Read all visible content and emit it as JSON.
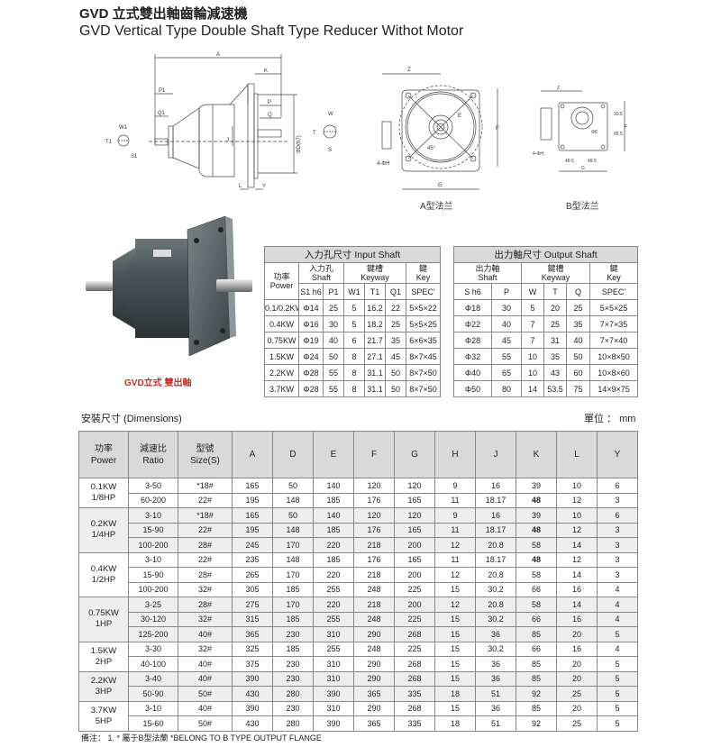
{
  "title": {
    "zh": "GVD 立式雙出軸齒輪減速機",
    "en": "GVD Vertical Type Double Shaft Type Reducer Withot Motor"
  },
  "drawings": {
    "side_labels": [
      "A",
      "K",
      "P1",
      "P",
      "Q1",
      "Q",
      "W1",
      "T1",
      "S1",
      "J",
      "ΦD(h7)",
      "W",
      "T",
      "S",
      "L",
      "Y"
    ],
    "flange_a_labels": [
      "Z",
      "E",
      "F",
      "G",
      "4-ΦH",
      "45°"
    ],
    "flange_b_labels": [
      "Z",
      "F",
      "G",
      "4-ΦH",
      "49.5",
      "49.5",
      "33.5",
      "65.5",
      "Φ8"
    ],
    "flange_a_caption": "A型法兰",
    "flange_b_caption": "B型法兰"
  },
  "photo_caption": "GVD立式  雙出軸",
  "input_shaft": {
    "caption": "入力孔尺寸 Input Shaft",
    "power_zh": "功率",
    "power_en": "Power",
    "shaft_zh": "入力孔",
    "shaft_en": "Shaft",
    "keyway_zh": "鍵槽",
    "keyway_en": "Keyway",
    "key_zh": "鍵",
    "key_en": "Key",
    "cols": [
      "S1  h6",
      "P1",
      "W1",
      "T1",
      "Q1",
      "SPEC'"
    ],
    "rows": [
      [
        "0.1/0.2KW",
        "Φ14",
        "25",
        "5",
        "16.2",
        "22",
        "5×5×22"
      ],
      [
        "0.4KW",
        "Φ16",
        "30",
        "5",
        "18.2",
        "25",
        "5×5×25"
      ],
      [
        "0.75KW",
        "Φ19",
        "40",
        "6",
        "21.7",
        "35",
        "6×6×35"
      ],
      [
        "1.5KW",
        "Φ24",
        "50",
        "8",
        "27.1",
        "45",
        "8×7×45"
      ],
      [
        "2.2KW",
        "Φ28",
        "55",
        "8",
        "31.1",
        "50",
        "8×7×50"
      ],
      [
        "3.7KW",
        "Φ28",
        "55",
        "8",
        "31.1",
        "50",
        "8×7×50"
      ]
    ]
  },
  "output_shaft": {
    "caption": "出力軸尺寸 Output Shaft",
    "shaft_zh": "出力軸",
    "shaft_en": "Shaft",
    "keyway_zh": "鍵槽",
    "keyway_en": "Keyway",
    "key_zh": "鍵",
    "key_en": "Key",
    "cols": [
      "S  h6",
      "P",
      "W",
      "T",
      "Q",
      "SPEC'"
    ],
    "rows": [
      [
        "Φ18",
        "30",
        "5",
        "20",
        "25",
        "5×5×25"
      ],
      [
        "Φ22",
        "40",
        "7",
        "25",
        "35",
        "7×7×35"
      ],
      [
        "Φ28",
        "45",
        "7",
        "31",
        "40",
        "7×7×40"
      ],
      [
        "Φ32",
        "55",
        "10",
        "35",
        "50",
        "10×8×50"
      ],
      [
        "Φ40",
        "65",
        "10",
        "43",
        "60",
        "10×8×60"
      ],
      [
        "Φ50",
        "80",
        "14",
        "53.5",
        "75",
        "14×9×75"
      ]
    ]
  },
  "dimensions": {
    "label": "安裝尺寸 (Dimensions)",
    "unit": "單位 ： mm",
    "headers": [
      [
        "功率",
        "Power"
      ],
      [
        "減速比",
        "Ratio"
      ],
      [
        "型號",
        "Size(S)"
      ],
      [
        "A"
      ],
      [
        "D"
      ],
      [
        "E"
      ],
      [
        "F"
      ],
      [
        "G"
      ],
      [
        "H"
      ],
      [
        "J"
      ],
      [
        "K"
      ],
      [
        "L"
      ],
      [
        "Y"
      ]
    ],
    "groups": [
      {
        "power": [
          "0.1KW",
          "1/8HP"
        ],
        "rows": [
          [
            "3-50",
            "*18#",
            "165",
            "50",
            "140",
            "120",
            "120",
            "9",
            "16",
            "39",
            "10",
            "6"
          ],
          [
            "60-200",
            "22#",
            "195",
            "148",
            "185",
            "176",
            "165",
            "11",
            "18.17",
            "48",
            "12",
            "3"
          ]
        ]
      },
      {
        "power": [
          "0.2KW",
          "1/4HP"
        ],
        "rows": [
          [
            "3-10",
            "*18#",
            "165",
            "50",
            "140",
            "120",
            "120",
            "9",
            "16",
            "39",
            "10",
            "6"
          ],
          [
            "15-90",
            "22#",
            "195",
            "148",
            "185",
            "176",
            "165",
            "11",
            "18.17",
            "48",
            "12",
            "3"
          ],
          [
            "100-200",
            "28#",
            "245",
            "170",
            "220",
            "218",
            "200",
            "12",
            "20.8",
            "58",
            "14",
            "3"
          ]
        ]
      },
      {
        "power": [
          "0.4KW",
          "1/2HP"
        ],
        "rows": [
          [
            "3-10",
            "22#",
            "235",
            "148",
            "185",
            "176",
            "165",
            "11",
            "18.17",
            "48",
            "12",
            "3"
          ],
          [
            "15-90",
            "28#",
            "265",
            "170",
            "220",
            "218",
            "200",
            "12",
            "20.8",
            "58",
            "14",
            "3"
          ],
          [
            "100-200",
            "32#",
            "305",
            "185",
            "255",
            "248",
            "225",
            "15",
            "30.2",
            "66",
            "16",
            "4"
          ]
        ]
      },
      {
        "power": [
          "0.75KW",
          "1HP"
        ],
        "rows": [
          [
            "3-25",
            "28#",
            "275",
            "170",
            "220",
            "218",
            "200",
            "12",
            "20.8",
            "58",
            "14",
            "4"
          ],
          [
            "30-120",
            "32#",
            "315",
            "185",
            "255",
            "248",
            "225",
            "15",
            "30.2",
            "66",
            "16",
            "4"
          ],
          [
            "125-200",
            "40#",
            "365",
            "230",
            "310",
            "290",
            "268",
            "15",
            "36",
            "85",
            "20",
            "5"
          ]
        ]
      },
      {
        "power": [
          "1.5KW",
          "2HP"
        ],
        "rows": [
          [
            "3-30",
            "32#",
            "325",
            "185",
            "255",
            "248",
            "225",
            "15",
            "30.2",
            "66",
            "16",
            "4"
          ],
          [
            "40-100",
            "40#",
            "375",
            "230",
            "310",
            "290",
            "268",
            "15",
            "36",
            "85",
            "20",
            "5"
          ]
        ]
      },
      {
        "power": [
          "2.2KW",
          "3HP"
        ],
        "rows": [
          [
            "3-40",
            "40#",
            "390",
            "230",
            "310",
            "290",
            "268",
            "15",
            "36",
            "85",
            "20",
            "5"
          ],
          [
            "50-90",
            "50#",
            "430",
            "280",
            "390",
            "365",
            "335",
            "18",
            "51",
            "92",
            "25",
            "5"
          ]
        ]
      },
      {
        "power": [
          "3.7KW",
          "5HP"
        ],
        "rows": [
          [
            "3-10",
            "40#",
            "390",
            "230",
            "310",
            "290",
            "268",
            "15",
            "36",
            "85",
            "20",
            "5"
          ],
          [
            "15-60",
            "50#",
            "430",
            "280",
            "390",
            "365",
            "335",
            "18",
            "51",
            "92",
            "25",
            "5"
          ]
        ]
      }
    ],
    "note": "備注： 1. * 屬于B型法蘭  *BELONG TO B TYPE OUTPUT FLANGE"
  },
  "colors": {
    "header_bg": "#d9d9d9",
    "alt_group_bg": "#eeeeee",
    "caption_red": "#c0322b",
    "photo_body": "#3f4a4c"
  }
}
